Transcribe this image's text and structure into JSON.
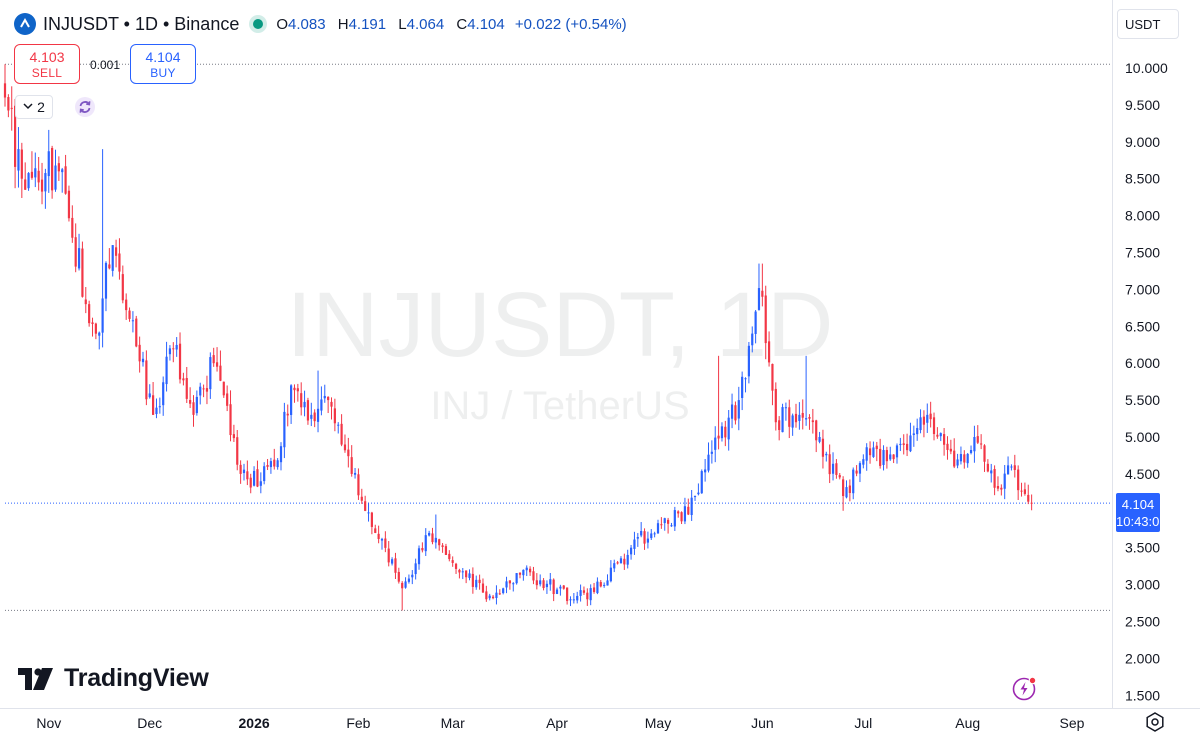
{
  "legend": {
    "symbol": "INJUSDT",
    "interval": "1D",
    "exchange": "Binance",
    "title": "INJUSDT • 1D • Binance",
    "open_label": "O",
    "open": "4.083",
    "high_label": "H",
    "high": "4.191",
    "low_label": "L",
    "low": "4.064",
    "close_label": "C",
    "close": "4.104",
    "change": "+0.022 (+0.54%)"
  },
  "trade": {
    "sell_price": "4.103",
    "sell_label": "SELL",
    "spread": "0.001",
    "buy_price": "4.104",
    "buy_label": "BUY"
  },
  "indicators_count": "2",
  "currency": "USDT",
  "last_price": "4.104",
  "countdown": "10:43:01",
  "watermark": {
    "main": "INJUSDT, 1D",
    "sub": "INJ / TetherUS"
  },
  "logo_text": "TradingView",
  "colors": {
    "up": "#2962ff",
    "down": "#f23645",
    "accent": "#2962ff"
  },
  "icons": [
    "chevron-down-icon",
    "sync-icon",
    "flash-icon",
    "settings-icon",
    "tradingview-logo-icon"
  ],
  "chart_data": {
    "type": "candlestick",
    "x_ticks": [
      "Nov",
      "Dec",
      "2026",
      "Feb",
      "Mar",
      "Apr",
      "May",
      "Jun",
      "Jul",
      "Aug",
      "Sep"
    ],
    "y_ticks": [
      "10.000",
      "9.500",
      "9.000",
      "8.500",
      "8.000",
      "7.500",
      "7.000",
      "6.500",
      "6.000",
      "5.500",
      "5.000",
      "4.500",
      "3.500",
      "3.000",
      "2.500",
      "2.000",
      "1.500"
    ],
    "y_range": [
      1.3,
      10.5
    ],
    "high_line": 10.05,
    "low_line": 2.65,
    "last_price": 4.104,
    "close_path": [
      {
        "date": "2025-10-19",
        "close": 9.6
      },
      {
        "date": "2025-10-24",
        "close": 8.5
      },
      {
        "date": "2025-11-04",
        "close": 8.6
      },
      {
        "date": "2025-11-08",
        "close": 7.7
      },
      {
        "date": "2025-11-15",
        "close": 6.4
      },
      {
        "date": "2025-11-20",
        "close": 7.6
      },
      {
        "date": "2025-11-25",
        "close": 6.6
      },
      {
        "date": "2025-12-02",
        "close": 5.3
      },
      {
        "date": "2025-12-08",
        "close": 6.2
      },
      {
        "date": "2025-12-14",
        "close": 5.3
      },
      {
        "date": "2025-12-20",
        "close": 6.0
      },
      {
        "date": "2025-12-28",
        "close": 4.5
      },
      {
        "date": "2026-01-03",
        "close": 4.4
      },
      {
        "date": "2026-01-07",
        "close": 4.6
      },
      {
        "date": "2026-01-12",
        "close": 5.7
      },
      {
        "date": "2026-01-18",
        "close": 5.3
      },
      {
        "date": "2026-01-23",
        "close": 5.5
      },
      {
        "date": "2026-01-30",
        "close": 4.5
      },
      {
        "date": "2026-02-06",
        "close": 3.7
      },
      {
        "date": "2026-02-14",
        "close": 2.95
      },
      {
        "date": "2026-02-22",
        "close": 3.7
      },
      {
        "date": "2026-03-05",
        "close": 3.1
      },
      {
        "date": "2026-03-12",
        "close": 2.85
      },
      {
        "date": "2026-03-22",
        "close": 3.2
      },
      {
        "date": "2026-04-06",
        "close": 2.8
      },
      {
        "date": "2026-04-12",
        "close": 2.9
      },
      {
        "date": "2026-04-23",
        "close": 3.5
      },
      {
        "date": "2026-05-03",
        "close": 3.9
      },
      {
        "date": "2026-05-10",
        "close": 3.95
      },
      {
        "date": "2026-05-17",
        "close": 4.8
      },
      {
        "date": "2026-05-25",
        "close": 5.5
      },
      {
        "date": "2026-05-30",
        "close": 6.7
      },
      {
        "date": "2026-06-01",
        "close": 6.9
      },
      {
        "date": "2026-06-05",
        "close": 5.2
      },
      {
        "date": "2026-06-12",
        "close": 5.3
      },
      {
        "date": "2026-06-18",
        "close": 5.0
      },
      {
        "date": "2026-06-25",
        "close": 4.2
      },
      {
        "date": "2026-07-01",
        "close": 4.7
      },
      {
        "date": "2026-07-10",
        "close": 4.7
      },
      {
        "date": "2026-07-20",
        "close": 5.3
      },
      {
        "date": "2026-07-28",
        "close": 4.6
      },
      {
        "date": "2026-08-03",
        "close": 5.0
      },
      {
        "date": "2026-08-10",
        "close": 4.3
      },
      {
        "date": "2026-08-14",
        "close": 4.6
      },
      {
        "date": "2026-08-20",
        "close": 4.104
      }
    ]
  }
}
